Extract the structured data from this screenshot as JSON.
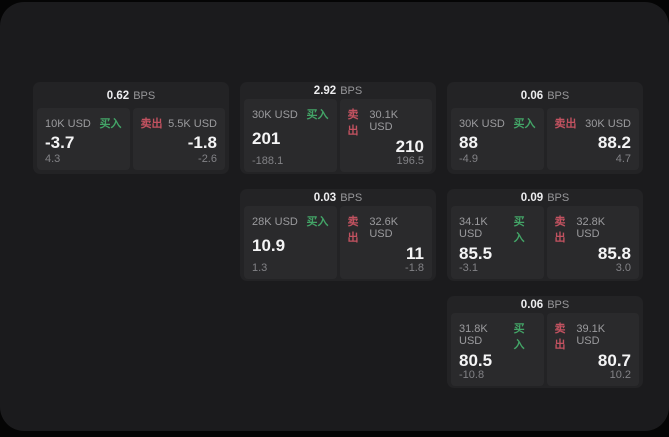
{
  "labels": {
    "bps_unit": "BPS",
    "buy": "买入",
    "sell": "卖出"
  },
  "colors": {
    "window_bg": "#1b1b1d",
    "card_bg": "#232325",
    "panel_bg": "#2a2a2c",
    "buy_green": "#43a467",
    "sell_red": "#c25260"
  },
  "cards": [
    {
      "bps": "0.62",
      "buy": {
        "amount": "10K USD",
        "price": "-3.7",
        "delta": "4.3"
      },
      "sell": {
        "amount": "5.5K USD",
        "price": "-1.8",
        "delta": "-2.6"
      }
    },
    {
      "bps": "2.92",
      "buy": {
        "amount": "30K USD",
        "price": "201",
        "delta": "-188.1"
      },
      "sell": {
        "amount": "30.1K USD",
        "price": "210",
        "delta": "196.5"
      }
    },
    {
      "bps": "0.06",
      "buy": {
        "amount": "30K USD",
        "price": "88",
        "delta": "-4.9"
      },
      "sell": {
        "amount": "30K USD",
        "price": "88.2",
        "delta": "4.7"
      }
    },
    {
      "bps": "0.03",
      "buy": {
        "amount": "28K USD",
        "price": "10.9",
        "delta": "1.3"
      },
      "sell": {
        "amount": "32.6K USD",
        "price": "11",
        "delta": "-1.8"
      }
    },
    {
      "bps": "0.09",
      "buy": {
        "amount": "34.1K USD",
        "price": "85.5",
        "delta": "-3.1"
      },
      "sell": {
        "amount": "32.8K USD",
        "price": "85.8",
        "delta": "3.0"
      }
    },
    {
      "bps": "0.06",
      "buy": {
        "amount": "31.8K USD",
        "price": "80.5",
        "delta": "-10.8"
      },
      "sell": {
        "amount": "39.1K USD",
        "price": "80.7",
        "delta": "10.2"
      }
    }
  ]
}
